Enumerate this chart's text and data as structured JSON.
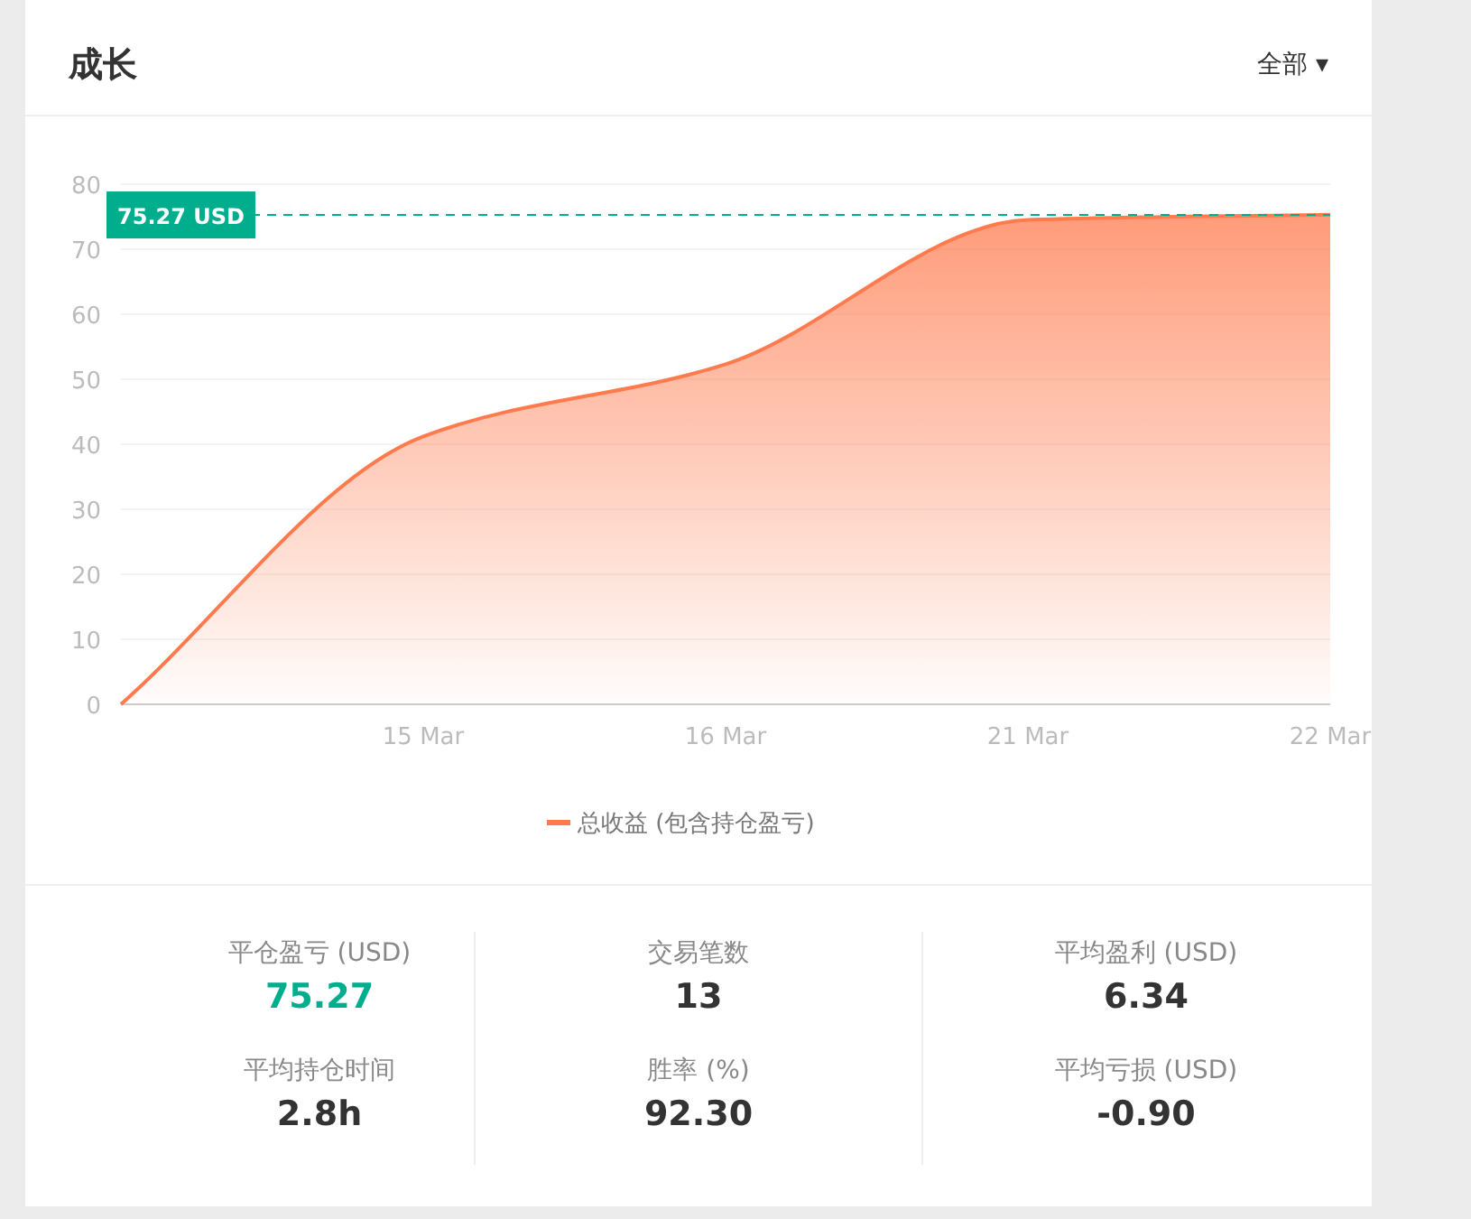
{
  "chart_data": [
    {
      "type": "area",
      "title": "成长",
      "annotations": [
        "全部 ▾"
      ],
      "categories": [
        null,
        "15 Mar",
        "16 Mar",
        "21 Mar",
        "22 Mar"
      ],
      "series": [
        {
          "name": "总收益 (包含持仓盈亏)",
          "color": "#ff7a4d",
          "values": [
            0,
            41.2,
            52.3,
            74.5,
            75.3
          ]
        }
      ],
      "ylim": [
        0,
        80
      ],
      "yticks": [
        0,
        10,
        20,
        30,
        40,
        50,
        60,
        70,
        80
      ],
      "grid": "y",
      "legend": "bottom",
      "ref_lines": [
        {
          "axis": "y",
          "value": 75.27,
          "label": "75.27 USD",
          "color": "#00ad8c",
          "line_style": "dashed"
        }
      ]
    },
    {
      "type": "other",
      "annotations": [
        "平仓盈亏 (USD)",
        "75.27",
        "平均持仓时间",
        "2.8h",
        "交易笔数",
        "13",
        "胜率 (%)",
        "92.30",
        "平均盈利 (USD)",
        "6.34",
        "平均亏损 (USD)",
        "-0.90"
      ]
    }
  ]
}
